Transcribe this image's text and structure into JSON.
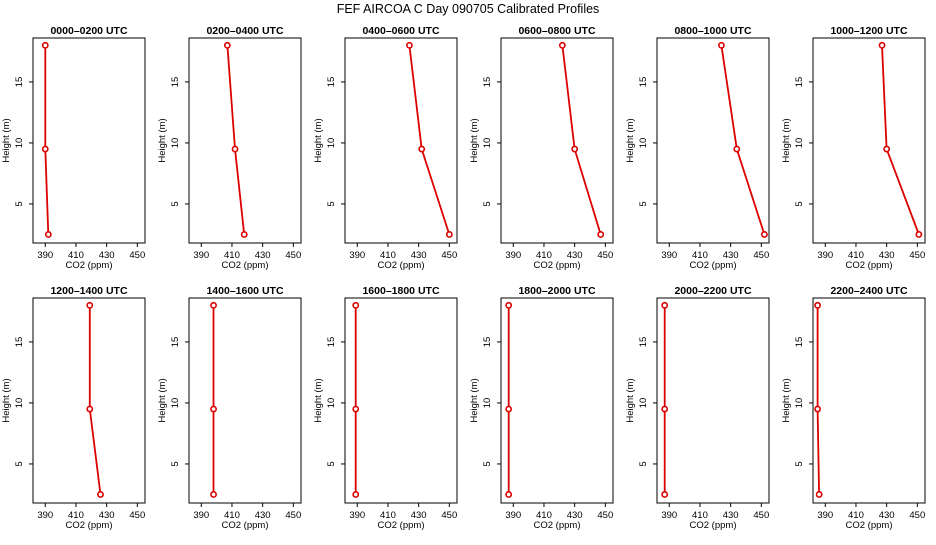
{
  "figure": {
    "title": "FEF AIRCOA C  Day 090705  Calibrated Profiles"
  },
  "style": {
    "line_color": "#dd0000",
    "marker_color": "#dd0000",
    "axis_color": "#000000"
  },
  "chart_data": [
    {
      "type": "line",
      "title": "0000–0200 UTC",
      "xlabel": "CO2 (ppm)",
      "ylabel": "Height (m)",
      "xlim": [
        382,
        455
      ],
      "ylim": [
        1.8,
        18.6
      ],
      "xticks": [
        390,
        410,
        430,
        450
      ],
      "yticks": [
        5,
        10,
        15
      ],
      "series": [
        {
          "points": [
            {
              "x": 390,
              "y": 18
            },
            {
              "x": 390,
              "y": 9.5
            },
            {
              "x": 392,
              "y": 2.5
            }
          ]
        }
      ]
    },
    {
      "type": "line",
      "title": "0200–0400 UTC",
      "xlabel": "CO2 (ppm)",
      "ylabel": "Height (m)",
      "xlim": [
        382,
        455
      ],
      "ylim": [
        1.8,
        18.6
      ],
      "xticks": [
        390,
        410,
        430,
        450
      ],
      "yticks": [
        5,
        10,
        15
      ],
      "series": [
        {
          "points": [
            {
              "x": 407,
              "y": 18
            },
            {
              "x": 412,
              "y": 9.5
            },
            {
              "x": 418,
              "y": 2.5
            }
          ]
        }
      ]
    },
    {
      "type": "line",
      "title": "0400–0600 UTC",
      "xlabel": "CO2 (ppm)",
      "ylabel": "Height (m)",
      "xlim": [
        382,
        455
      ],
      "ylim": [
        1.8,
        18.6
      ],
      "xticks": [
        390,
        410,
        430,
        450
      ],
      "yticks": [
        5,
        10,
        15
      ],
      "series": [
        {
          "points": [
            {
              "x": 424,
              "y": 18
            },
            {
              "x": 432,
              "y": 9.5
            },
            {
              "x": 450,
              "y": 2.5
            }
          ]
        }
      ]
    },
    {
      "type": "line",
      "title": "0600–0800 UTC",
      "xlabel": "CO2 (ppm)",
      "ylabel": "Height (m)",
      "xlim": [
        382,
        455
      ],
      "ylim": [
        1.8,
        18.6
      ],
      "xticks": [
        390,
        410,
        430,
        450
      ],
      "yticks": [
        5,
        10,
        15
      ],
      "series": [
        {
          "points": [
            {
              "x": 422,
              "y": 18
            },
            {
              "x": 430,
              "y": 9.5
            },
            {
              "x": 447,
              "y": 2.5
            }
          ]
        }
      ]
    },
    {
      "type": "line",
      "title": "0800–1000 UTC",
      "xlabel": "CO2 (ppm)",
      "ylabel": "Height (m)",
      "xlim": [
        382,
        455
      ],
      "ylim": [
        1.8,
        18.6
      ],
      "xticks": [
        390,
        410,
        430,
        450
      ],
      "yticks": [
        5,
        10,
        15
      ],
      "series": [
        {
          "points": [
            {
              "x": 424,
              "y": 18
            },
            {
              "x": 434,
              "y": 9.5
            },
            {
              "x": 452,
              "y": 2.5
            }
          ]
        }
      ]
    },
    {
      "type": "line",
      "title": "1000–1200 UTC",
      "xlabel": "CO2 (ppm)",
      "ylabel": "Height (m)",
      "xlim": [
        382,
        455
      ],
      "ylim": [
        1.8,
        18.6
      ],
      "xticks": [
        390,
        410,
        430,
        450
      ],
      "yticks": [
        5,
        10,
        15
      ],
      "series": [
        {
          "points": [
            {
              "x": 427,
              "y": 18
            },
            {
              "x": 430,
              "y": 9.5
            },
            {
              "x": 451,
              "y": 2.5
            }
          ]
        }
      ]
    },
    {
      "type": "line",
      "title": "1200–1400 UTC",
      "xlabel": "CO2 (ppm)",
      "ylabel": "Height (m)",
      "xlim": [
        382,
        455
      ],
      "ylim": [
        1.8,
        18.6
      ],
      "xticks": [
        390,
        410,
        430,
        450
      ],
      "yticks": [
        5,
        10,
        15
      ],
      "series": [
        {
          "points": [
            {
              "x": 419,
              "y": 18
            },
            {
              "x": 419,
              "y": 9.5
            },
            {
              "x": 426,
              "y": 2.5
            }
          ]
        }
      ]
    },
    {
      "type": "line",
      "title": "1400–1600 UTC",
      "xlabel": "CO2 (ppm)",
      "ylabel": "Height (m)",
      "xlim": [
        382,
        455
      ],
      "ylim": [
        1.8,
        18.6
      ],
      "xticks": [
        390,
        410,
        430,
        450
      ],
      "yticks": [
        5,
        10,
        15
      ],
      "series": [
        {
          "points": [
            {
              "x": 398,
              "y": 18
            },
            {
              "x": 398,
              "y": 9.5
            },
            {
              "x": 398,
              "y": 2.5
            }
          ]
        }
      ]
    },
    {
      "type": "line",
      "title": "1600–1800 UTC",
      "xlabel": "CO2 (ppm)",
      "ylabel": "Height (m)",
      "xlim": [
        382,
        455
      ],
      "ylim": [
        1.8,
        18.6
      ],
      "xticks": [
        390,
        410,
        430,
        450
      ],
      "yticks": [
        5,
        10,
        15
      ],
      "series": [
        {
          "points": [
            {
              "x": 389,
              "y": 18
            },
            {
              "x": 389,
              "y": 9.5
            },
            {
              "x": 389,
              "y": 2.5
            }
          ]
        }
      ]
    },
    {
      "type": "line",
      "title": "1800–2000 UTC",
      "xlabel": "CO2 (ppm)",
      "ylabel": "Height (m)",
      "xlim": [
        382,
        455
      ],
      "ylim": [
        1.8,
        18.6
      ],
      "xticks": [
        390,
        410,
        430,
        450
      ],
      "yticks": [
        5,
        10,
        15
      ],
      "series": [
        {
          "points": [
            {
              "x": 387,
              "y": 18
            },
            {
              "x": 387,
              "y": 9.5
            },
            {
              "x": 387,
              "y": 2.5
            }
          ]
        }
      ]
    },
    {
      "type": "line",
      "title": "2000–2200 UTC",
      "xlabel": "CO2 (ppm)",
      "ylabel": "Height (m)",
      "xlim": [
        382,
        455
      ],
      "ylim": [
        1.8,
        18.6
      ],
      "xticks": [
        390,
        410,
        430,
        450
      ],
      "yticks": [
        5,
        10,
        15
      ],
      "series": [
        {
          "points": [
            {
              "x": 387,
              "y": 18
            },
            {
              "x": 387,
              "y": 9.5
            },
            {
              "x": 387,
              "y": 2.5
            }
          ]
        }
      ]
    },
    {
      "type": "line",
      "title": "2200–2400 UTC",
      "xlabel": "CO2 (ppm)",
      "ylabel": "Height (m)",
      "xlim": [
        382,
        455
      ],
      "ylim": [
        1.8,
        18.6
      ],
      "xticks": [
        390,
        410,
        430,
        450
      ],
      "yticks": [
        5,
        10,
        15
      ],
      "series": [
        {
          "points": [
            {
              "x": 385,
              "y": 18
            },
            {
              "x": 385,
              "y": 9.5
            },
            {
              "x": 386,
              "y": 2.5
            }
          ]
        }
      ]
    }
  ]
}
